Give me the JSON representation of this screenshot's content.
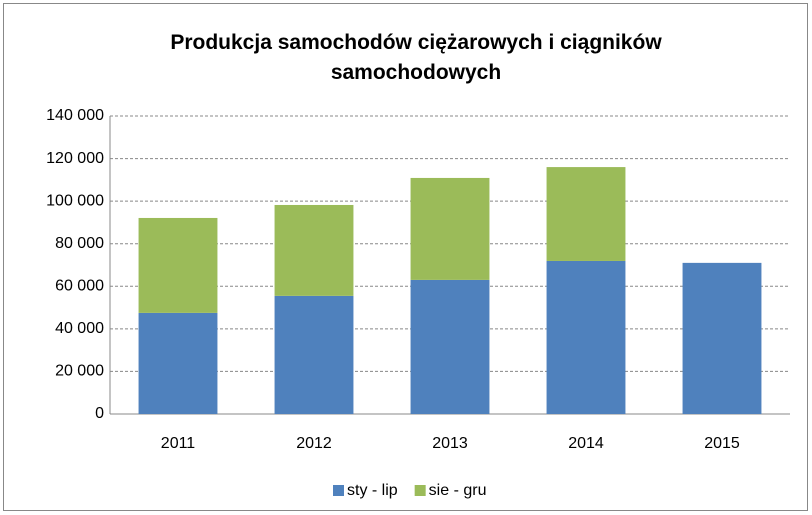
{
  "chart_data": {
    "type": "stacked-bar",
    "title": "Produkcja samochodów ciężarowych i ciągników samochodowych",
    "categories": [
      "2011",
      "2012",
      "2013",
      "2014",
      "2015"
    ],
    "series": [
      {
        "name": "sty - lip",
        "color": "#4f81bd",
        "values": [
          47500,
          55500,
          63000,
          71900,
          71000
        ]
      },
      {
        "name": "sie - gru",
        "color": "#9bbb59",
        "values": [
          44600,
          42700,
          47900,
          44100,
          null
        ]
      }
    ],
    "ylim": [
      0,
      140000
    ],
    "yticks": [
      0,
      {
        "value": 20000,
        "label": "20 000"
      },
      {
        "value": 40000,
        "label": "40 000"
      },
      {
        "value": 60000,
        "label": "60 000"
      },
      {
        "value": 80000,
        "label": "80 000"
      },
      {
        "value": 100000,
        "label": "100 000"
      },
      {
        "value": 120000,
        "label": "120 000"
      },
      {
        "value": 140000,
        "label": "140 000"
      }
    ],
    "grid": true,
    "legend": "bottom"
  }
}
